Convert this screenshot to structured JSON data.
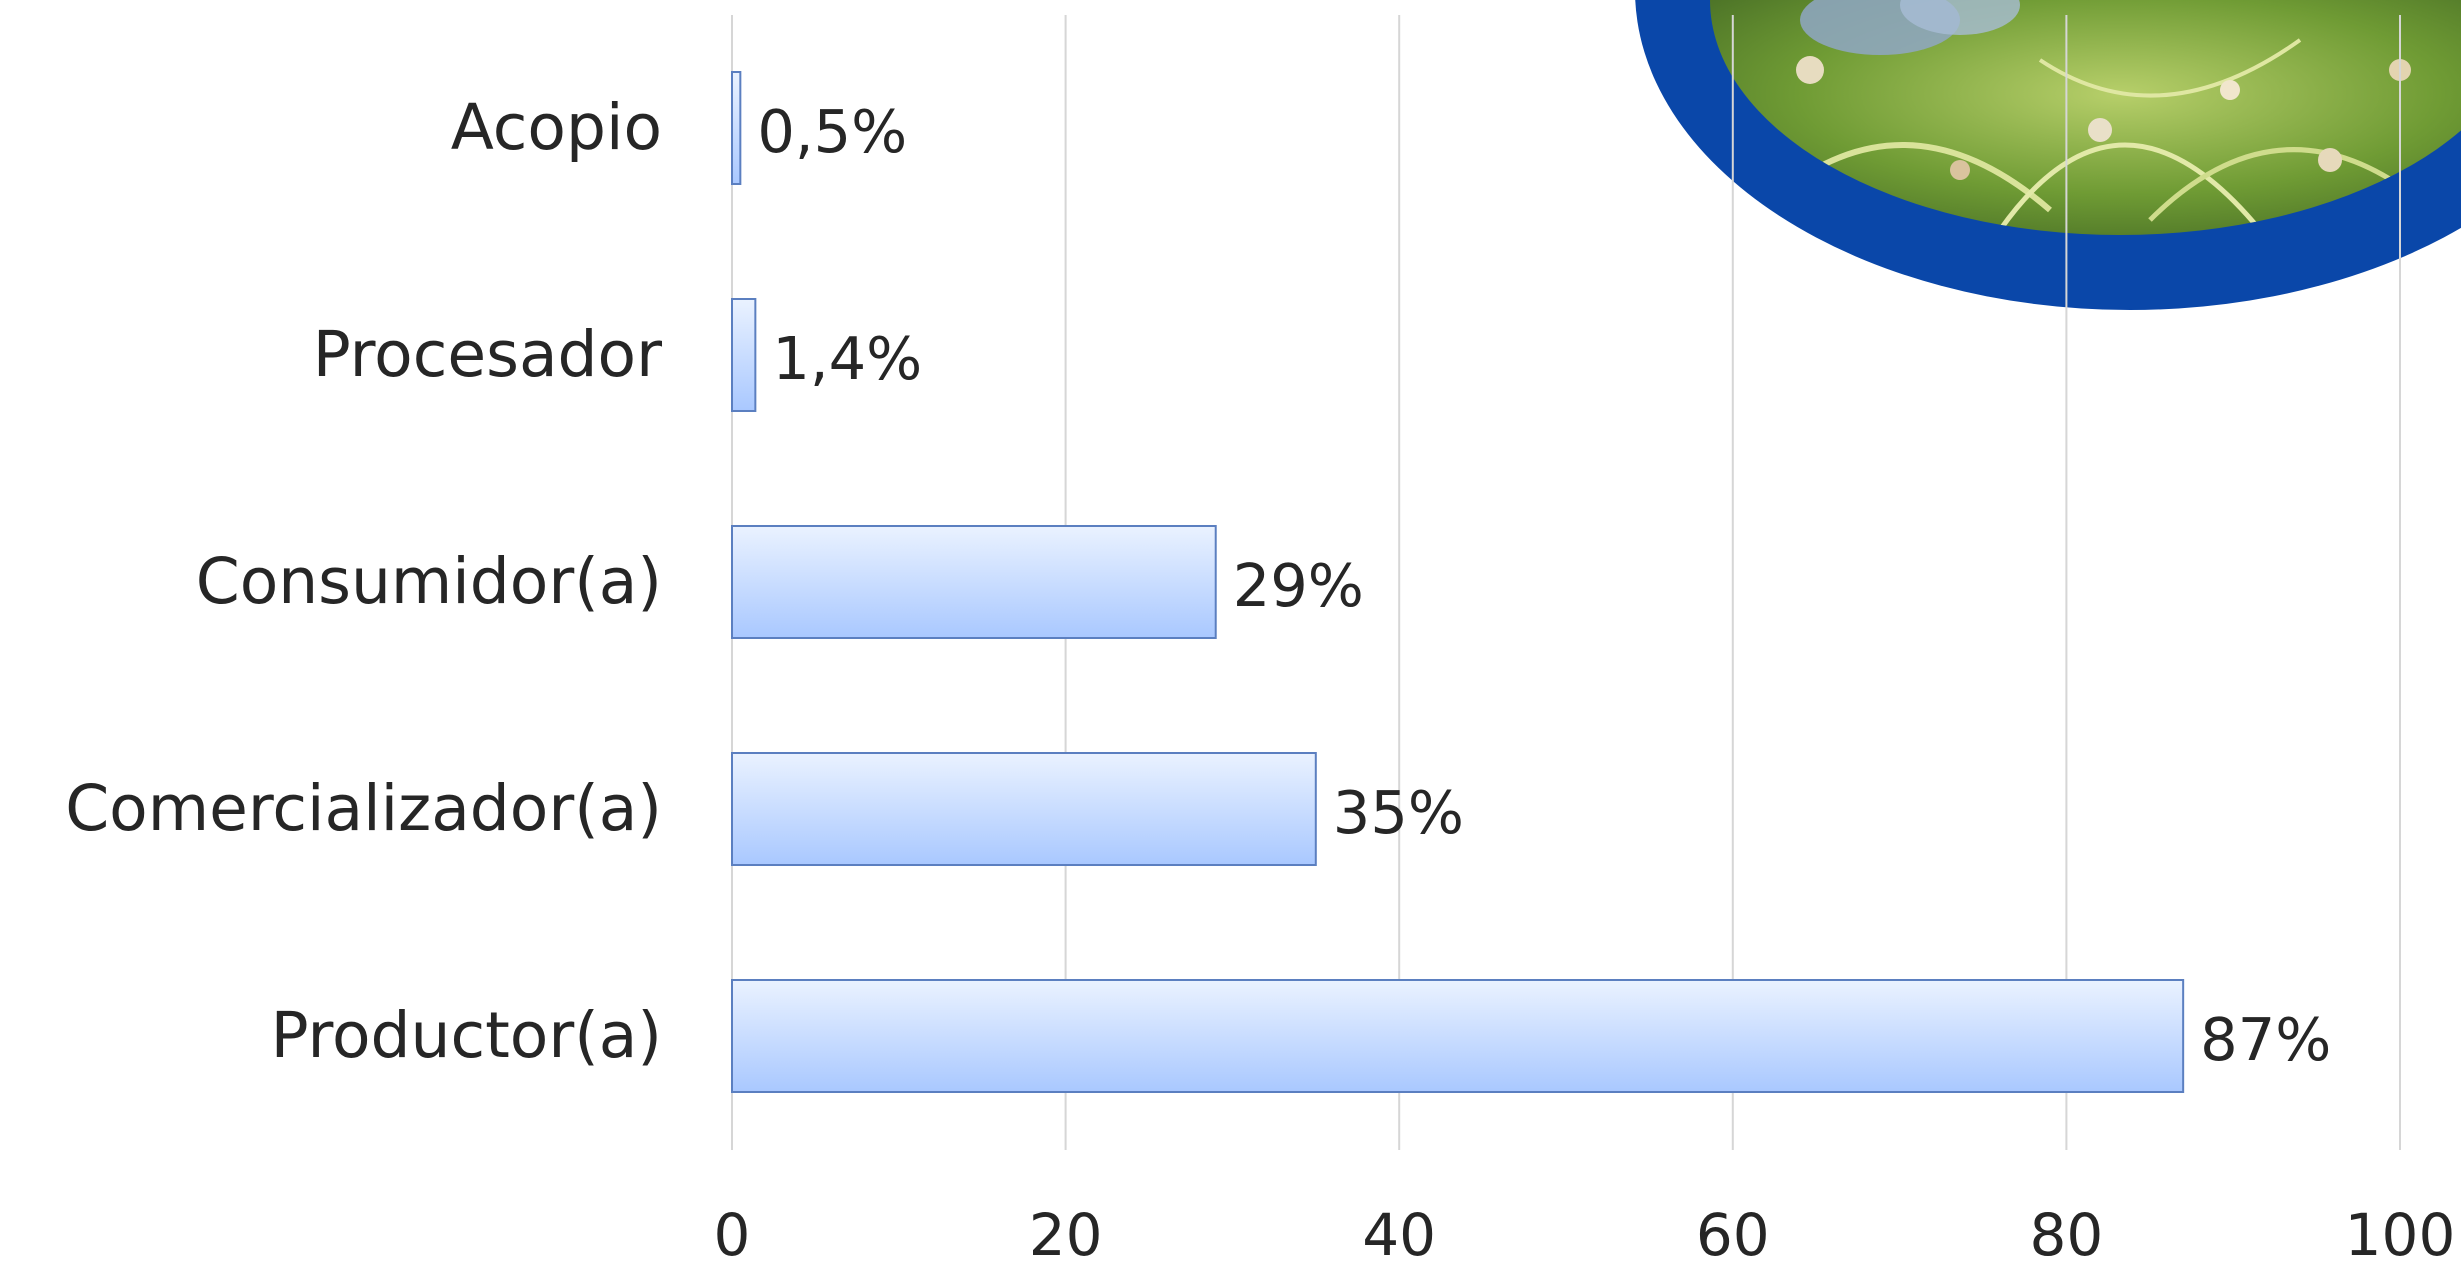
{
  "chart_data": {
    "type": "bar",
    "orientation": "horizontal",
    "categories": [
      "Acopio",
      "Procesador",
      "Consumidor(a)",
      "Comercializador(a)",
      "Productor(a)"
    ],
    "values": [
      0.5,
      1.4,
      29,
      35,
      87
    ],
    "data_labels": [
      "0,5%",
      "1,4%",
      "29%",
      "35%",
      "87%"
    ],
    "x_ticks": [
      "0",
      "20",
      "40",
      "60",
      "80",
      "100"
    ],
    "x_range": [
      0,
      100
    ],
    "grid": true,
    "legend": false,
    "title": "",
    "xlabel": "",
    "ylabel": ""
  },
  "decoration": {
    "photo_subject": "peanut plants in field",
    "frame_color": "#0a47a9"
  },
  "colors": {
    "bar_top": "#eaf2ff",
    "bar_bottom": "#a9c8ff",
    "bar_border": "#5b7fc0",
    "grid": "#d6d6d6",
    "text": "#262626"
  }
}
